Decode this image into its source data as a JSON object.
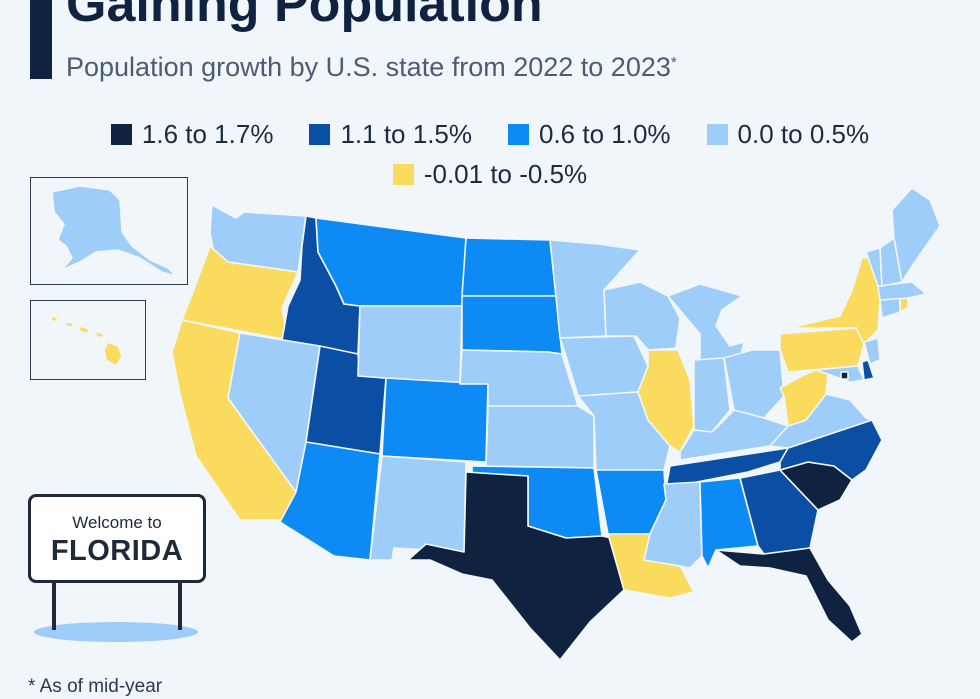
{
  "title": "Gaining Population",
  "subtitle": "Population growth by U.S. state from 2022 to 2023",
  "subtitle_marker": "*",
  "legend": [
    {
      "label": "1.6 to 1.7%",
      "color": "#0f2340"
    },
    {
      "label": "1.1 to 1.5%",
      "color": "#0b4fa5"
    },
    {
      "label": "0.6 to 1.0%",
      "color": "#0e8af5"
    },
    {
      "label": "0.0 to 0.5%",
      "color": "#9dcdf8"
    },
    {
      "label": "-0.01 to -0.5%",
      "color": "#fadb5e"
    }
  ],
  "sign": {
    "line1": "Welcome to",
    "line2": "FLORIDA"
  },
  "footnote": "* As of mid-year"
}
